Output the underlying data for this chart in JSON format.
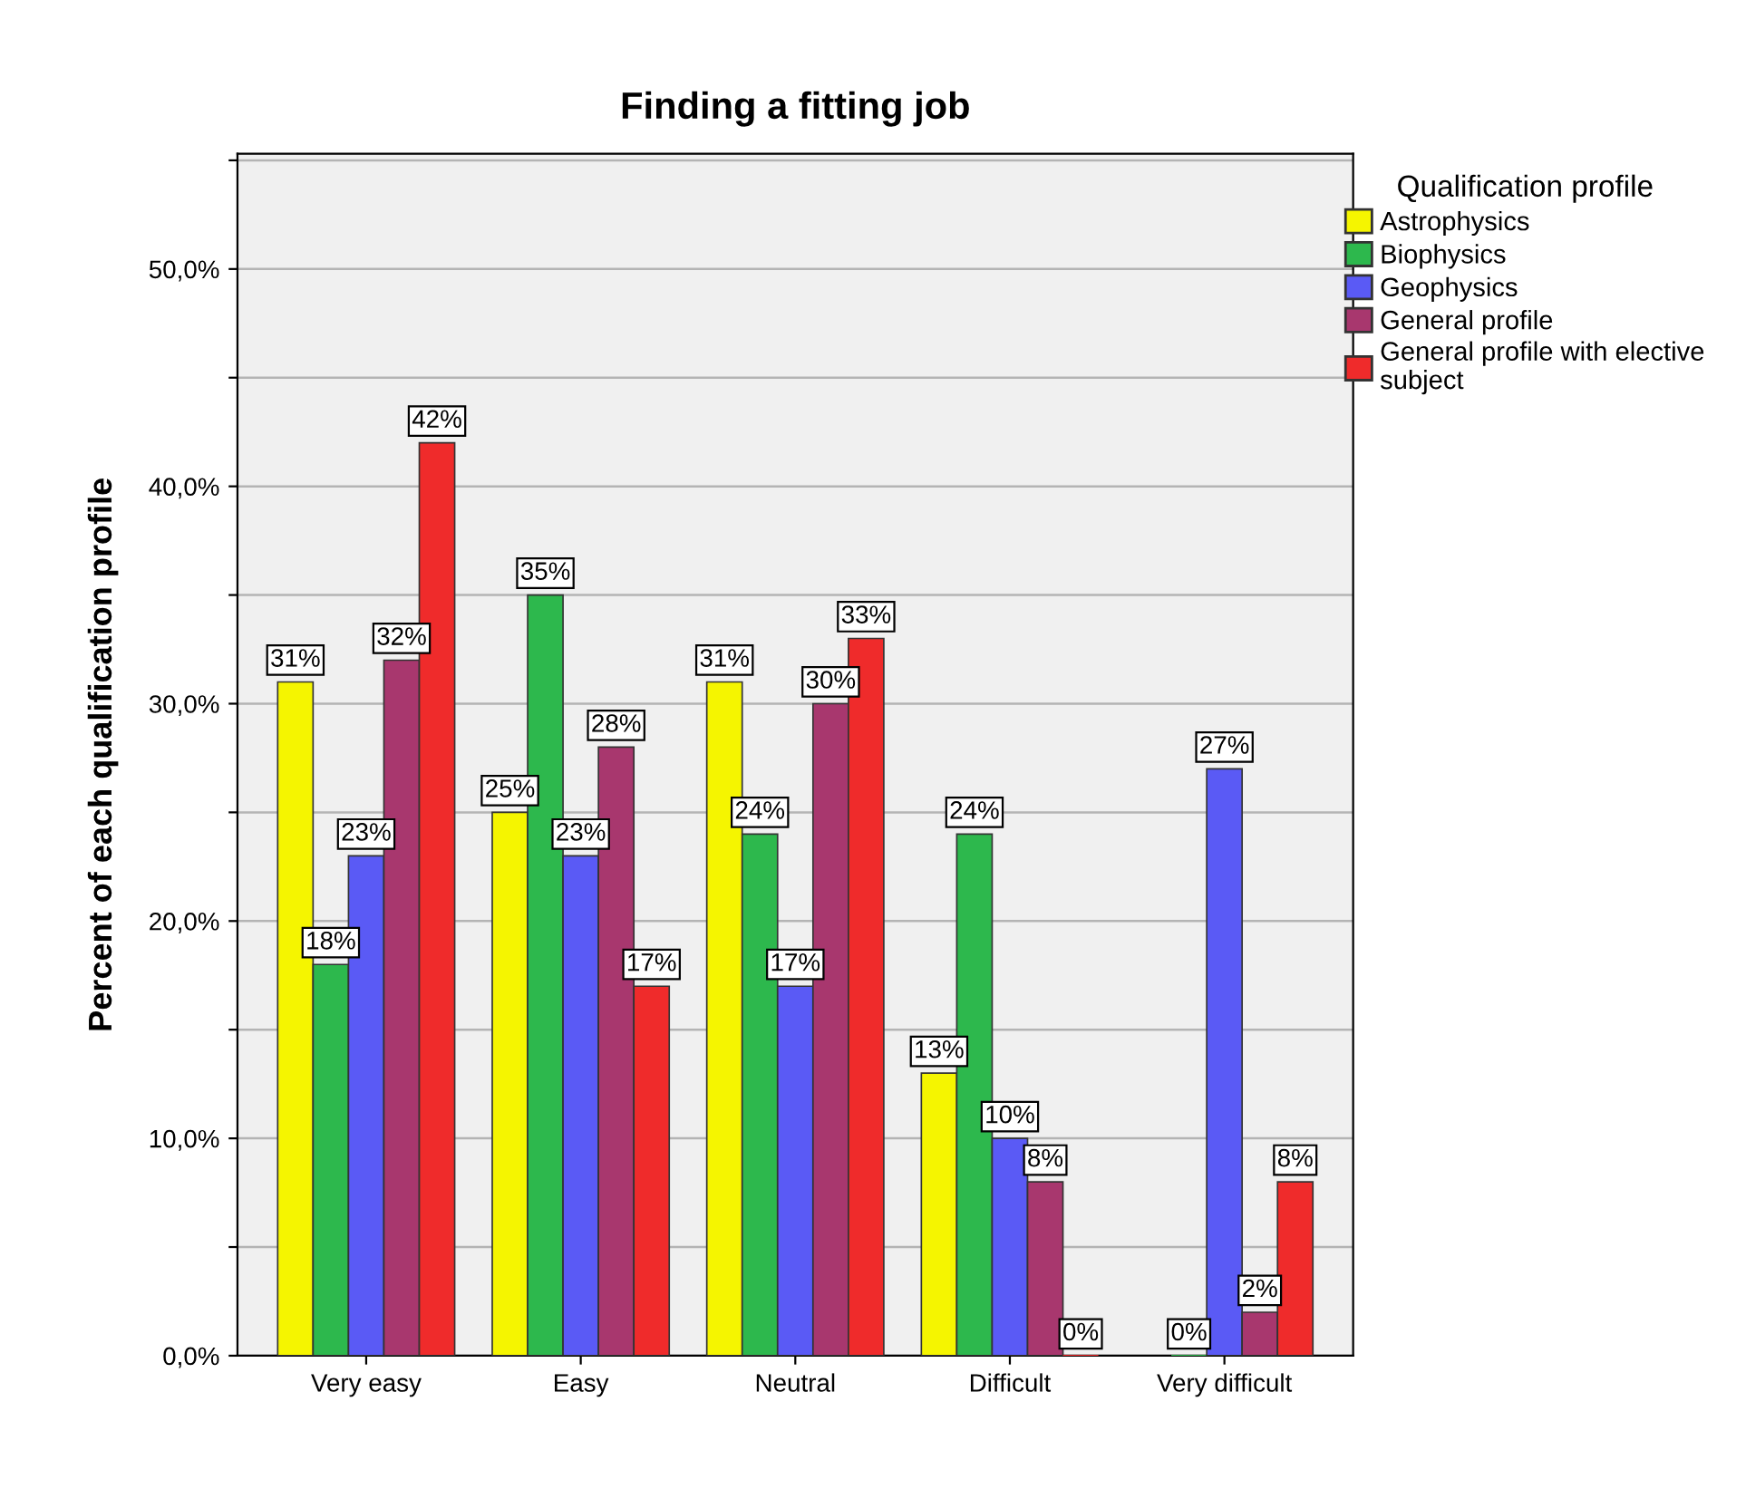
{
  "chart_data": {
    "type": "bar",
    "title": "Finding a fitting job",
    "ylabel": "Percent of each qualification profile",
    "legend_title": "Qualification profile",
    "categories": [
      "Very easy",
      "Easy",
      "Neutral",
      "Difficult",
      "Very difficult"
    ],
    "series": [
      {
        "name": "Astrophysics",
        "color": "#f5f500",
        "values": [
          31,
          25,
          31,
          13,
          null
        ],
        "value_labels": [
          "31%",
          "25%",
          "31%",
          "13%",
          null
        ]
      },
      {
        "name": "Biophysics",
        "color": "#2db84d",
        "values": [
          18,
          35,
          24,
          24,
          0
        ],
        "value_labels": [
          "18%",
          "35%",
          "24%",
          "24%",
          "0%"
        ]
      },
      {
        "name": "Geophysics",
        "color": "#5a5af5",
        "values": [
          23,
          23,
          17,
          10,
          27
        ],
        "value_labels": [
          "23%",
          "23%",
          "17%",
          "10%",
          "27%"
        ]
      },
      {
        "name": "General profile",
        "color": "#a8376e",
        "values": [
          32,
          28,
          30,
          8,
          2
        ],
        "value_labels": [
          "32%",
          "28%",
          "30%",
          "8%",
          "2%"
        ]
      },
      {
        "name": "General profile with elective\nsubject",
        "color": "#ef2b2b",
        "values": [
          42,
          17,
          33,
          0,
          8
        ],
        "value_labels": [
          "42%",
          "17%",
          "33%",
          "0%",
          "8%"
        ]
      }
    ],
    "ylim": [
      0,
      55.3
    ],
    "yticks": [
      {
        "value": 0,
        "label": "0,0%"
      },
      {
        "value": 5,
        "label": null
      },
      {
        "value": 10,
        "label": "10,0%"
      },
      {
        "value": 15,
        "label": null
      },
      {
        "value": 20,
        "label": "20,0%"
      },
      {
        "value": 25,
        "label": null
      },
      {
        "value": 30,
        "label": "30,0%"
      },
      {
        "value": 35,
        "label": null
      },
      {
        "value": 40,
        "label": "40,0%"
      },
      {
        "value": 45,
        "label": null
      },
      {
        "value": 50,
        "label": "50,0%"
      },
      {
        "value": 55,
        "label": null
      }
    ],
    "grid": "y",
    "legend": "top right"
  }
}
